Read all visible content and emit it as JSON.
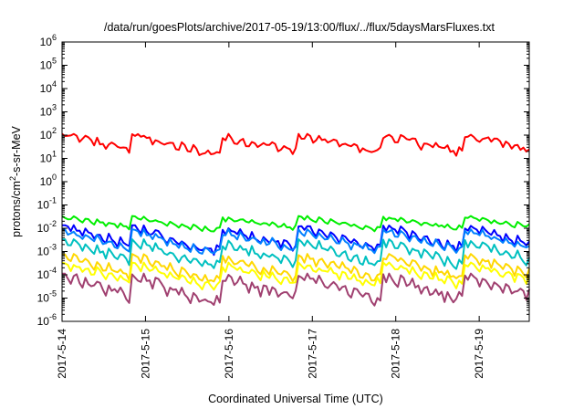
{
  "chart_data": {
    "type": "line",
    "title": "/data/run/goesPlots/archive/2017-05-19/13:00/flux/../flux/5daysMarsFluxes.txt",
    "xlabel": "Coordinated Universal Time (UTC)",
    "ylabel": {
      "pre": "protons/cm",
      "sup": "2",
      "post": "-s-sr-MeV"
    },
    "yscale": "log",
    "ylim": [
      1e-06,
      1000000.0
    ],
    "xlim": [
      0,
      5.6
    ],
    "grid": false,
    "x_tick_labels": [
      "2017-5-14",
      "2017-5-15",
      "2017-5-16",
      "2017-5-17",
      "2017-5-18",
      "2017-5-19"
    ],
    "y_ticks": [
      {
        "exp": -6
      },
      {
        "exp": -5
      },
      {
        "exp": -4
      },
      {
        "exp": -3
      },
      {
        "exp": -2
      },
      {
        "exp": -1
      },
      {
        "exp": 0
      },
      {
        "exp": 1
      },
      {
        "exp": 2
      },
      {
        "exp": 3
      },
      {
        "exp": 4
      },
      {
        "exp": 5
      },
      {
        "exp": 6
      }
    ],
    "y_tick_base": "10",
    "series": [
      {
        "color": "#ff0000",
        "low": 15,
        "high": 100,
        "phases": [
          0.0,
          0.82,
          1.92,
          2.82,
          3.82,
          4.82
        ],
        "noise": 0.08
      },
      {
        "color": "#00ee00",
        "low": 0.008,
        "high": 0.03,
        "phases": [
          0.0,
          0.82,
          1.92,
          2.82,
          3.82,
          4.82
        ],
        "noise": 0.03
      },
      {
        "color": "#0000ff",
        "low": 0.001,
        "high": 0.012,
        "phases": [
          0.0,
          0.82,
          1.92,
          2.82,
          3.82,
          4.82
        ],
        "noise": 0.05
      },
      {
        "color": "#0080ff",
        "low": 0.0008,
        "high": 0.008,
        "phases": [
          0.0,
          0.82,
          1.92,
          2.82,
          3.82,
          4.82
        ],
        "noise": 0.05
      },
      {
        "color": "#00c0c0",
        "low": 0.0002,
        "high": 0.003,
        "phases": [
          0.0,
          0.82,
          1.92,
          2.82,
          3.82,
          4.82
        ],
        "noise": 0.06
      },
      {
        "color": "#ffd700",
        "low": 5e-05,
        "high": 0.0007,
        "phases": [
          0.0,
          0.82,
          1.92,
          2.82,
          3.82,
          4.82
        ],
        "noise": 0.06
      },
      {
        "color": "#ffff00",
        "low": 3e-05,
        "high": 0.0003,
        "phases": [
          0.0,
          0.82,
          1.92,
          2.82,
          3.82,
          4.82
        ],
        "noise": 0.06
      },
      {
        "color": "#a04070",
        "low": 6e-06,
        "high": 0.0001,
        "phases": [
          0.0,
          0.82,
          1.92,
          2.82,
          3.82,
          4.82
        ],
        "noise": 0.08
      }
    ]
  }
}
